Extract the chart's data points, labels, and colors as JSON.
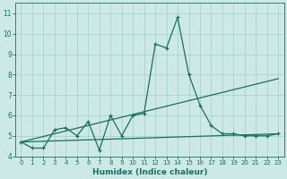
{
  "xlabel": "Humidex (Indice chaleur)",
  "xlim": [
    -0.5,
    23.5
  ],
  "ylim": [
    4.0,
    11.5
  ],
  "yticks": [
    4,
    5,
    6,
    7,
    8,
    9,
    10,
    11
  ],
  "xticks": [
    0,
    1,
    2,
    3,
    4,
    5,
    6,
    7,
    8,
    9,
    10,
    11,
    12,
    13,
    14,
    15,
    16,
    17,
    18,
    19,
    20,
    21,
    22,
    23
  ],
  "bg_color": "#cce9e5",
  "grid_color": "#aad4cf",
  "line_color": "#1a6e62",
  "line1_x": [
    0,
    1,
    2,
    3,
    4,
    5,
    6,
    7,
    8,
    9,
    10,
    11,
    12,
    13,
    14,
    15,
    16,
    17,
    18,
    19,
    20,
    21,
    22,
    23
  ],
  "line1_y": [
    4.7,
    4.4,
    4.4,
    5.3,
    5.4,
    5.0,
    5.7,
    4.3,
    6.0,
    5.0,
    6.0,
    6.1,
    9.5,
    9.3,
    10.8,
    8.0,
    6.5,
    5.5,
    5.1,
    5.1,
    5.0,
    5.0,
    5.0,
    5.1
  ],
  "line2_x": [
    0,
    23
  ],
  "line2_y": [
    4.7,
    7.8
  ],
  "line3_x": [
    0,
    23
  ],
  "line3_y": [
    4.7,
    5.1
  ],
  "marker_style": "+",
  "marker_size": 3,
  "linewidth": 0.9
}
